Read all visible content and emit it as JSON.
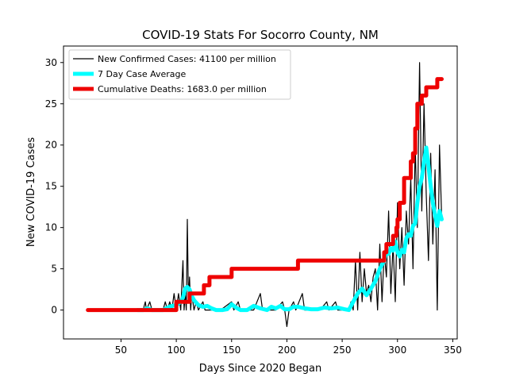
{
  "chart_data": {
    "type": "line",
    "title": "COVID-19 Stats For Socorro County, NM",
    "xlabel": "Days Since 2020 Began",
    "ylabel": "New COVID-19 Cases",
    "xlim": [
      -2,
      354
    ],
    "ylim": [
      -3.5,
      32
    ],
    "xticks": [
      50,
      100,
      150,
      200,
      250,
      300,
      350
    ],
    "yticks": [
      0,
      5,
      10,
      15,
      20,
      25,
      30
    ],
    "grid": false,
    "legend_position": "top-left",
    "series": [
      {
        "name": "New Confirmed Cases: 41100 per million",
        "color": "#000000",
        "points": [
          [
            70,
            0
          ],
          [
            72,
            1
          ],
          [
            73,
            0
          ],
          [
            76,
            1
          ],
          [
            78,
            0
          ],
          [
            88,
            0
          ],
          [
            90,
            1
          ],
          [
            92,
            0
          ],
          [
            94,
            1
          ],
          [
            96,
            0
          ],
          [
            98,
            2
          ],
          [
            100,
            0
          ],
          [
            102,
            2
          ],
          [
            104,
            0
          ],
          [
            106,
            6
          ],
          [
            107,
            0
          ],
          [
            108,
            2
          ],
          [
            109,
            0
          ],
          [
            110,
            11
          ],
          [
            111,
            1
          ],
          [
            112,
            4
          ],
          [
            113,
            0
          ],
          [
            114,
            2
          ],
          [
            116,
            0
          ],
          [
            118,
            1
          ],
          [
            120,
            0
          ],
          [
            124,
            1
          ],
          [
            126,
            0
          ],
          [
            132,
            0
          ],
          [
            140,
            0
          ],
          [
            150,
            1
          ],
          [
            152,
            0
          ],
          [
            156,
            1
          ],
          [
            158,
            0
          ],
          [
            170,
            0
          ],
          [
            176,
            2
          ],
          [
            178,
            0
          ],
          [
            190,
            0
          ],
          [
            196,
            1
          ],
          [
            198,
            0
          ],
          [
            200,
            -2
          ],
          [
            202,
            0
          ],
          [
            206,
            1
          ],
          [
            208,
            0
          ],
          [
            214,
            2
          ],
          [
            216,
            0
          ],
          [
            230,
            0
          ],
          [
            236,
            1
          ],
          [
            238,
            0
          ],
          [
            244,
            1
          ],
          [
            246,
            0
          ],
          [
            252,
            0
          ],
          [
            256,
            0
          ],
          [
            258,
            1
          ],
          [
            260,
            0
          ],
          [
            262,
            6
          ],
          [
            264,
            0
          ],
          [
            266,
            7
          ],
          [
            268,
            1
          ],
          [
            270,
            5
          ],
          [
            272,
            2
          ],
          [
            274,
            3
          ],
          [
            276,
            1
          ],
          [
            278,
            4
          ],
          [
            280,
            5
          ],
          [
            282,
            0
          ],
          [
            284,
            8
          ],
          [
            286,
            1
          ],
          [
            288,
            7
          ],
          [
            290,
            4
          ],
          [
            292,
            12
          ],
          [
            294,
            2
          ],
          [
            296,
            8
          ],
          [
            298,
            1
          ],
          [
            300,
            13
          ],
          [
            302,
            5
          ],
          [
            304,
            10
          ],
          [
            306,
            3
          ],
          [
            308,
            12
          ],
          [
            310,
            8
          ],
          [
            312,
            16
          ],
          [
            314,
            5
          ],
          [
            316,
            20
          ],
          [
            318,
            10
          ],
          [
            320,
            30
          ],
          [
            322,
            12
          ],
          [
            324,
            25
          ],
          [
            326,
            14
          ],
          [
            328,
            6
          ],
          [
            330,
            19
          ],
          [
            332,
            8
          ],
          [
            334,
            17
          ],
          [
            336,
            0
          ],
          [
            338,
            20
          ],
          [
            340,
            11
          ]
        ]
      },
      {
        "name": "7 Day Case Average",
        "color": "#00ffff",
        "points": [
          [
            65,
            0
          ],
          [
            70,
            0
          ],
          [
            74,
            0.2
          ],
          [
            78,
            0
          ],
          [
            88,
            0
          ],
          [
            92,
            0.3
          ],
          [
            96,
            0.5
          ],
          [
            100,
            0.6
          ],
          [
            104,
            1
          ],
          [
            106,
            1.5
          ],
          [
            108,
            2.6
          ],
          [
            110,
            2.8
          ],
          [
            112,
            2.5
          ],
          [
            114,
            1.7
          ],
          [
            116,
            1.2
          ],
          [
            120,
            0.6
          ],
          [
            124,
            0.4
          ],
          [
            128,
            0.5
          ],
          [
            132,
            0.2
          ],
          [
            136,
            0
          ],
          [
            142,
            0
          ],
          [
            146,
            0.1
          ],
          [
            150,
            0.7
          ],
          [
            154,
            0.3
          ],
          [
            158,
            0
          ],
          [
            164,
            0
          ],
          [
            170,
            0.5
          ],
          [
            176,
            0.2
          ],
          [
            182,
            0
          ],
          [
            186,
            0.4
          ],
          [
            190,
            0.2
          ],
          [
            194,
            0.5
          ],
          [
            198,
            0.1
          ],
          [
            202,
            0.1
          ],
          [
            206,
            0.4
          ],
          [
            210,
            0.4
          ],
          [
            216,
            0.2
          ],
          [
            222,
            0.1
          ],
          [
            228,
            0.1
          ],
          [
            234,
            0.3
          ],
          [
            240,
            0.2
          ],
          [
            246,
            0.3
          ],
          [
            252,
            0.1
          ],
          [
            256,
            0
          ],
          [
            260,
            1
          ],
          [
            264,
            2
          ],
          [
            268,
            2.6
          ],
          [
            272,
            1.8
          ],
          [
            276,
            2.6
          ],
          [
            280,
            3.5
          ],
          [
            284,
            5
          ],
          [
            288,
            6
          ],
          [
            290,
            7
          ],
          [
            292,
            6.8
          ],
          [
            294,
            7.5
          ],
          [
            296,
            7.2
          ],
          [
            298,
            8.3
          ],
          [
            300,
            7
          ],
          [
            302,
            6.5
          ],
          [
            304,
            7.3
          ],
          [
            306,
            7
          ],
          [
            308,
            8.7
          ],
          [
            310,
            9.2
          ],
          [
            312,
            9
          ],
          [
            314,
            10.2
          ],
          [
            316,
            10.5
          ],
          [
            318,
            13
          ],
          [
            320,
            15
          ],
          [
            322,
            16
          ],
          [
            324,
            18
          ],
          [
            326,
            19.7
          ],
          [
            328,
            17.5
          ],
          [
            330,
            15
          ],
          [
            332,
            13
          ],
          [
            334,
            11.5
          ],
          [
            336,
            10.2
          ],
          [
            338,
            12
          ],
          [
            340,
            11
          ]
        ]
      },
      {
        "name": "Cumulative Deaths: 1683.0 per million",
        "color": "#ee0000",
        "points": [
          [
            20,
            0
          ],
          [
            100,
            0
          ],
          [
            100,
            1
          ],
          [
            112,
            1
          ],
          [
            112,
            2
          ],
          [
            125,
            2
          ],
          [
            125,
            3
          ],
          [
            130,
            3
          ],
          [
            130,
            4
          ],
          [
            150,
            4
          ],
          [
            150,
            5
          ],
          [
            210,
            5
          ],
          [
            210,
            6
          ],
          [
            288,
            6
          ],
          [
            288,
            7
          ],
          [
            290,
            7
          ],
          [
            290,
            8
          ],
          [
            296,
            8
          ],
          [
            296,
            9
          ],
          [
            299,
            9
          ],
          [
            299,
            10
          ],
          [
            300,
            10
          ],
          [
            300,
            11
          ],
          [
            302,
            11
          ],
          [
            302,
            13
          ],
          [
            306,
            13
          ],
          [
            306,
            16
          ],
          [
            312,
            16
          ],
          [
            312,
            18
          ],
          [
            314,
            18
          ],
          [
            314,
            19
          ],
          [
            316,
            19
          ],
          [
            316,
            22
          ],
          [
            318,
            22
          ],
          [
            318,
            25
          ],
          [
            322,
            25
          ],
          [
            322,
            26
          ],
          [
            326,
            26
          ],
          [
            326,
            27
          ],
          [
            336,
            27
          ],
          [
            336,
            28
          ],
          [
            340,
            28
          ]
        ]
      }
    ]
  }
}
